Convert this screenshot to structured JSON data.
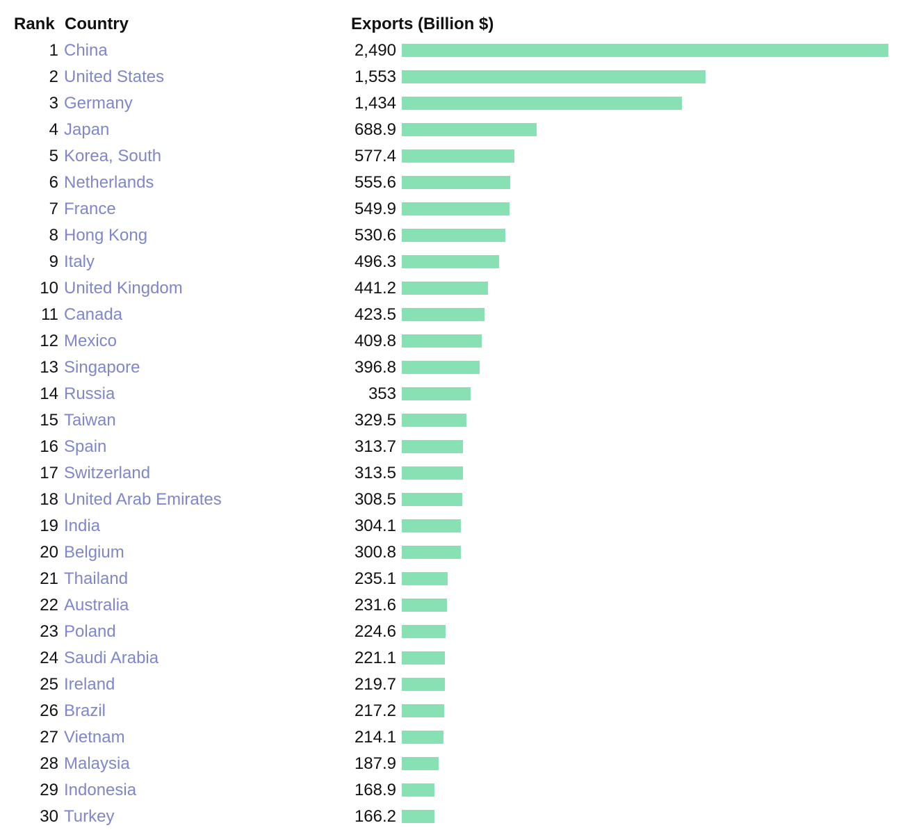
{
  "header": {
    "rank": "Rank",
    "country": "Country",
    "exports": "Exports (Billion $)"
  },
  "colors": {
    "bar": "#88e1b3",
    "link": "#7f86cc",
    "text": "#111111"
  },
  "chart_data": {
    "type": "bar",
    "orientation": "horizontal",
    "value_label": "Exports (Billion $)",
    "categories": [
      "China",
      "United States",
      "Germany",
      "Japan",
      "Korea, South",
      "Netherlands",
      "France",
      "Hong Kong",
      "Italy",
      "United Kingdom",
      "Canada",
      "Mexico",
      "Singapore",
      "Russia",
      "Taiwan",
      "Spain",
      "Switzerland",
      "United Arab Emirates",
      "India",
      "Belgium",
      "Thailand",
      "Australia",
      "Poland",
      "Saudi Arabia",
      "Ireland",
      "Brazil",
      "Vietnam",
      "Malaysia",
      "Indonesia",
      "Turkey"
    ],
    "ranks": [
      "1",
      "2",
      "3",
      "4",
      "5",
      "6",
      "7",
      "8",
      "9",
      "10",
      "11",
      "12",
      "13",
      "14",
      "15",
      "16",
      "17",
      "18",
      "19",
      "20",
      "21",
      "22",
      "23",
      "24",
      "25",
      "26",
      "27",
      "28",
      "29",
      "30"
    ],
    "value_labels": [
      "2,490",
      "1,553",
      "1,434",
      "688.9",
      "577.4",
      "555.6",
      "549.9",
      "530.6",
      "496.3",
      "441.2",
      "423.5",
      "409.8",
      "396.8",
      "353",
      "329.5",
      "313.7",
      "313.5",
      "308.5",
      "304.1",
      "300.8",
      "235.1",
      "231.6",
      "224.6",
      "221.1",
      "219.7",
      "217.2",
      "214.1",
      "187.9",
      "168.9",
      "166.2"
    ],
    "values": [
      2490,
      1553,
      1434,
      688.9,
      577.4,
      555.6,
      549.9,
      530.6,
      496.3,
      441.2,
      423.5,
      409.8,
      396.8,
      353,
      329.5,
      313.7,
      313.5,
      308.5,
      304.1,
      300.8,
      235.1,
      231.6,
      224.6,
      221.1,
      219.7,
      217.2,
      214.1,
      187.9,
      168.9,
      166.2
    ],
    "xlim": [
      0,
      2490
    ]
  }
}
